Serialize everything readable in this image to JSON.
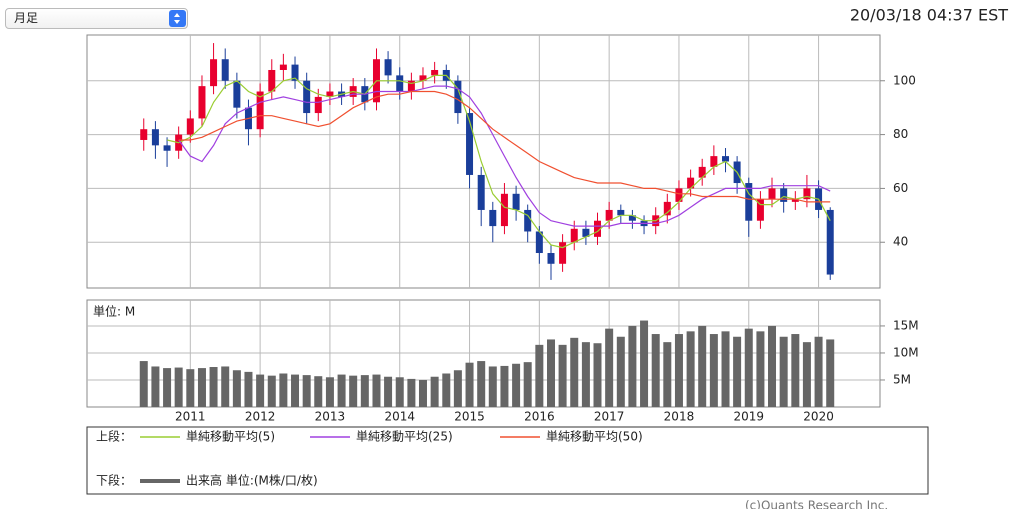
{
  "select": "月足",
  "timestamp": "20/03/18 04:37 EST",
  "footer": "(c)Quants Research Inc.",
  "chart_data": [
    {
      "type": "candlestick",
      "legend_label": "上段：",
      "up_color": "#e8002e",
      "down_color": "#1a3e9a",
      "grid": true,
      "x": [
        2010.333,
        2010.5,
        2010.667,
        2010.833,
        2011,
        2011.167,
        2011.333,
        2011.5,
        2011.667,
        2011.833,
        2012,
        2012.167,
        2012.333,
        2012.5,
        2012.667,
        2012.833,
        2013,
        2013.167,
        2013.333,
        2013.5,
        2013.667,
        2013.833,
        2014,
        2014.167,
        2014.333,
        2014.5,
        2014.667,
        2014.833,
        2015,
        2015.167,
        2015.333,
        2015.5,
        2015.667,
        2015.833,
        2016,
        2016.167,
        2016.333,
        2016.5,
        2016.667,
        2016.833,
        2017,
        2017.167,
        2017.333,
        2017.5,
        2017.667,
        2017.833,
        2018,
        2018.167,
        2018.333,
        2018.5,
        2018.667,
        2018.833,
        2019,
        2019.167,
        2019.333,
        2019.5,
        2019.667,
        2019.833,
        2020,
        2020.167
      ],
      "open": [
        78,
        82,
        76,
        74,
        80,
        86,
        98,
        108,
        100,
        90,
        82,
        96,
        104,
        106,
        100,
        88,
        94,
        96,
        94,
        98,
        92,
        108,
        102,
        96,
        100,
        102,
        104,
        100,
        88,
        65,
        52,
        46,
        58,
        52,
        44,
        36,
        32,
        40,
        45,
        42,
        48,
        52,
        50,
        48,
        46,
        50,
        55,
        60,
        64,
        68,
        72,
        70,
        62,
        48,
        56,
        60,
        55,
        56,
        60,
        52
      ],
      "high": [
        86,
        85,
        79,
        83,
        89,
        102,
        114,
        112,
        103,
        93,
        99,
        108,
        110,
        109,
        103,
        97,
        99,
        99,
        101,
        101,
        112,
        111,
        105,
        103,
        105,
        107,
        106,
        102,
        90,
        68,
        55,
        62,
        61,
        54,
        46,
        39,
        43,
        48,
        48,
        51,
        55,
        54,
        52,
        50,
        53,
        58,
        63,
        67,
        71,
        76,
        75,
        72,
        64,
        59,
        64,
        62,
        59,
        65,
        63,
        53
      ],
      "low": [
        74,
        71,
        68,
        71,
        77,
        83,
        95,
        97,
        86,
        76,
        79,
        93,
        100,
        97,
        84,
        85,
        91,
        91,
        91,
        89,
        89,
        99,
        93,
        93,
        97,
        99,
        97,
        84,
        60,
        46,
        40,
        43,
        48,
        40,
        32,
        26,
        29,
        37,
        39,
        39,
        45,
        47,
        45,
        43,
        43,
        47,
        52,
        57,
        61,
        65,
        66,
        58,
        42,
        45,
        53,
        51,
        52,
        53,
        49,
        26
      ],
      "close": [
        82,
        76,
        74,
        80,
        86,
        98,
        108,
        100,
        90,
        82,
        96,
        104,
        106,
        100,
        88,
        94,
        96,
        94,
        98,
        92,
        108,
        102,
        96,
        100,
        102,
        104,
        100,
        88,
        65,
        52,
        46,
        58,
        52,
        44,
        36,
        32,
        40,
        45,
        42,
        48,
        52,
        50,
        48,
        46,
        50,
        55,
        60,
        64,
        68,
        72,
        70,
        62,
        48,
        56,
        60,
        55,
        56,
        60,
        52,
        28
      ],
      "lines": [
        {
          "name": "単純移動平均(5)",
          "color": "#9acd32",
          "values": [
            null,
            null,
            78,
            77,
            79,
            83,
            92,
            98,
            100,
            96,
            94,
            96,
            100,
            101,
            97,
            95,
            94,
            95,
            96,
            95,
            100,
            100,
            100,
            99,
            100,
            102,
            102,
            97,
            85,
            70,
            58,
            53,
            52,
            50,
            44,
            39,
            38,
            40,
            42,
            44,
            48,
            50,
            50,
            48,
            48,
            51,
            55,
            60,
            64,
            68,
            70,
            66,
            58,
            54,
            54,
            57,
            56,
            57,
            56,
            48
          ]
        },
        {
          "name": "単純移動平均(25)",
          "color": "#a040e0",
          "values": [
            null,
            null,
            null,
            78,
            72,
            70,
            76,
            84,
            88,
            90,
            92,
            93,
            94,
            93,
            92,
            92,
            93,
            94,
            95,
            95,
            96,
            96,
            96,
            96,
            97,
            98,
            98,
            97,
            94,
            88,
            80,
            72,
            64,
            57,
            51,
            48,
            47,
            46,
            46,
            46,
            46,
            47,
            47,
            47,
            47,
            48,
            50,
            53,
            56,
            58,
            60,
            60,
            60,
            60,
            61,
            61,
            61,
            61,
            61,
            59
          ]
        },
        {
          "name": "単純移動平均(50)",
          "color": "#f05030",
          "values": [
            null,
            null,
            null,
            78,
            78,
            79,
            81,
            83,
            85,
            86,
            87,
            87,
            86,
            85,
            84,
            83,
            84,
            87,
            90,
            92,
            94,
            95,
            95,
            96,
            96,
            96,
            95,
            93,
            90,
            86,
            82,
            79,
            76,
            73,
            70,
            68,
            66,
            64,
            63,
            62,
            62,
            62,
            61,
            60,
            60,
            59,
            58,
            58,
            57,
            57,
            57,
            57,
            56,
            56,
            56,
            56,
            56,
            55,
            55,
            55
          ]
        }
      ],
      "xlim": [
        2009.52,
        2020.88
      ],
      "xticks": [
        2011,
        2012,
        2013,
        2014,
        2015,
        2016,
        2017,
        2018,
        2019,
        2020
      ],
      "ylim": [
        23,
        117
      ],
      "yticks": [
        40,
        60,
        80,
        100
      ]
    },
    {
      "type": "bar",
      "unit_label": "単位: M",
      "legend_label": "下段：",
      "grid": true,
      "x": [
        2010.333,
        2010.5,
        2010.667,
        2010.833,
        2011,
        2011.167,
        2011.333,
        2011.5,
        2011.667,
        2011.833,
        2012,
        2012.167,
        2012.333,
        2012.5,
        2012.667,
        2012.833,
        2013,
        2013.167,
        2013.333,
        2013.5,
        2013.667,
        2013.833,
        2014,
        2014.167,
        2014.333,
        2014.5,
        2014.667,
        2014.833,
        2015,
        2015.167,
        2015.333,
        2015.5,
        2015.667,
        2015.833,
        2016,
        2016.167,
        2016.333,
        2016.5,
        2016.667,
        2016.833,
        2017,
        2017.167,
        2017.333,
        2017.5,
        2017.667,
        2017.833,
        2018,
        2018.167,
        2018.333,
        2018.5,
        2018.667,
        2018.833,
        2019,
        2019.167,
        2019.333,
        2019.5,
        2019.667,
        2019.833,
        2020,
        2020.167
      ],
      "series": [
        {
          "name": "出来高 単位:(M株/口/枚)",
          "color": "#666666",
          "values": [
            8.5,
            7.5,
            7.2,
            7.3,
            7.0,
            7.2,
            7.4,
            7.5,
            6.8,
            6.5,
            6.0,
            5.8,
            6.2,
            6.0,
            5.9,
            5.7,
            5.5,
            6.0,
            5.8,
            5.9,
            6.0,
            5.6,
            5.5,
            5.2,
            5.0,
            5.6,
            6.2,
            6.8,
            8.2,
            8.5,
            7.5,
            7.6,
            8.0,
            8.3,
            11.5,
            12.5,
            11.5,
            12.8,
            12.0,
            11.8,
            14.5,
            13.0,
            15.0,
            16.0,
            13.5,
            12.0,
            13.5,
            14.0,
            15.0,
            13.5,
            14.0,
            13.0,
            14.5,
            14.0,
            15.0,
            13.0,
            13.5,
            12.0,
            13.0,
            12.5
          ]
        }
      ],
      "xlim": [
        2009.52,
        2020.88
      ],
      "xticks": [
        2011,
        2012,
        2013,
        2014,
        2015,
        2016,
        2017,
        2018,
        2019,
        2020
      ],
      "ylim": [
        0,
        19.8
      ],
      "yticks": [
        {
          "value": 5,
          "label": "5M"
        },
        {
          "value": 10,
          "label": "10M"
        },
        {
          "value": 15,
          "label": "15M"
        }
      ]
    }
  ]
}
